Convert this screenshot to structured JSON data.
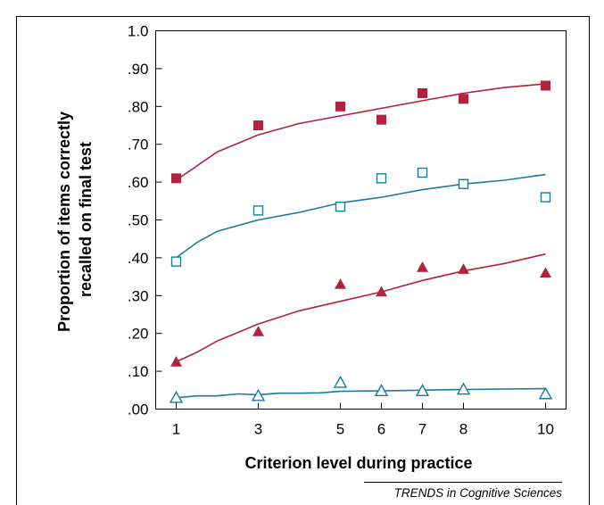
{
  "chart_data": {
    "type": "scatter",
    "xlabel": "Criterion level during practice",
    "ylabel_lines": [
      "Proportion of items correctly",
      "recalled on final test"
    ],
    "xlim": [
      0.5,
      10.5
    ],
    "ylim": [
      0,
      1.0
    ],
    "xticks": [
      1,
      3,
      5,
      6,
      7,
      8,
      10
    ],
    "yticks": [
      {
        "value": 0.0,
        "label": ".00"
      },
      {
        "value": 0.1,
        "label": ".10"
      },
      {
        "value": 0.2,
        "label": ".20"
      },
      {
        "value": 0.3,
        "label": ".30"
      },
      {
        "value": 0.4,
        "label": ".40"
      },
      {
        "value": 0.5,
        "label": ".50"
      },
      {
        "value": 0.6,
        "label": ".60"
      },
      {
        "value": 0.7,
        "label": ".70"
      },
      {
        "value": 0.8,
        "label": ".80"
      },
      {
        "value": 0.9,
        "label": ".90"
      },
      {
        "value": 1.0,
        "label": "1.0"
      }
    ],
    "grid": false,
    "legend": "none",
    "series": [
      {
        "marker": "square-filled",
        "color": "#b0223f",
        "x": [
          1,
          3,
          5,
          6,
          7,
          8,
          10
        ],
        "y": [
          0.61,
          0.75,
          0.8,
          0.765,
          0.835,
          0.82,
          0.855
        ],
        "fit": [
          [
            1,
            0.605
          ],
          [
            2,
            0.68
          ],
          [
            3,
            0.725
          ],
          [
            4,
            0.755
          ],
          [
            5,
            0.775
          ],
          [
            6,
            0.795
          ],
          [
            7,
            0.815
          ],
          [
            8,
            0.835
          ],
          [
            9,
            0.85
          ],
          [
            10,
            0.86
          ]
        ]
      },
      {
        "marker": "square-open",
        "color": "#1b7a9e",
        "x": [
          1,
          3,
          5,
          6,
          7,
          8,
          10
        ],
        "y": [
          0.39,
          0.525,
          0.535,
          0.61,
          0.625,
          0.595,
          0.56
        ],
        "fit": [
          [
            1,
            0.4
          ],
          [
            1.5,
            0.44
          ],
          [
            2,
            0.47
          ],
          [
            3,
            0.5
          ],
          [
            4,
            0.52
          ],
          [
            5,
            0.545
          ],
          [
            6,
            0.56
          ],
          [
            7,
            0.58
          ],
          [
            8,
            0.595
          ],
          [
            9,
            0.605
          ],
          [
            10,
            0.62
          ]
        ]
      },
      {
        "marker": "triangle-filled",
        "color": "#b0223f",
        "x": [
          1,
          3,
          5,
          6,
          7,
          8,
          10
        ],
        "y": [
          0.125,
          0.205,
          0.33,
          0.31,
          0.375,
          0.37,
          0.36
        ],
        "fit": [
          [
            1,
            0.125
          ],
          [
            1.5,
            0.15
          ],
          [
            2,
            0.18
          ],
          [
            3,
            0.225
          ],
          [
            4,
            0.26
          ],
          [
            5,
            0.285
          ],
          [
            6,
            0.31
          ],
          [
            7,
            0.34
          ],
          [
            8,
            0.365
          ],
          [
            9,
            0.385
          ],
          [
            10,
            0.41
          ]
        ]
      },
      {
        "marker": "triangle-open",
        "color": "#1b7a9e",
        "x": [
          1,
          3,
          5,
          6,
          7,
          8,
          10
        ],
        "y": [
          0.03,
          0.035,
          0.07,
          0.048,
          0.048,
          0.052,
          0.04
        ],
        "fit": [
          [
            1,
            0.03
          ],
          [
            1.5,
            0.035
          ],
          [
            2,
            0.035
          ],
          [
            2.5,
            0.04
          ],
          [
            3,
            0.038
          ],
          [
            3.5,
            0.042
          ],
          [
            4,
            0.042
          ],
          [
            4.5,
            0.043
          ],
          [
            5,
            0.047
          ],
          [
            6,
            0.048
          ],
          [
            7,
            0.05
          ],
          [
            8,
            0.052
          ],
          [
            9,
            0.053
          ],
          [
            10,
            0.054
          ]
        ]
      }
    ]
  },
  "credit": "TRENDS in Cognitive Sciences"
}
